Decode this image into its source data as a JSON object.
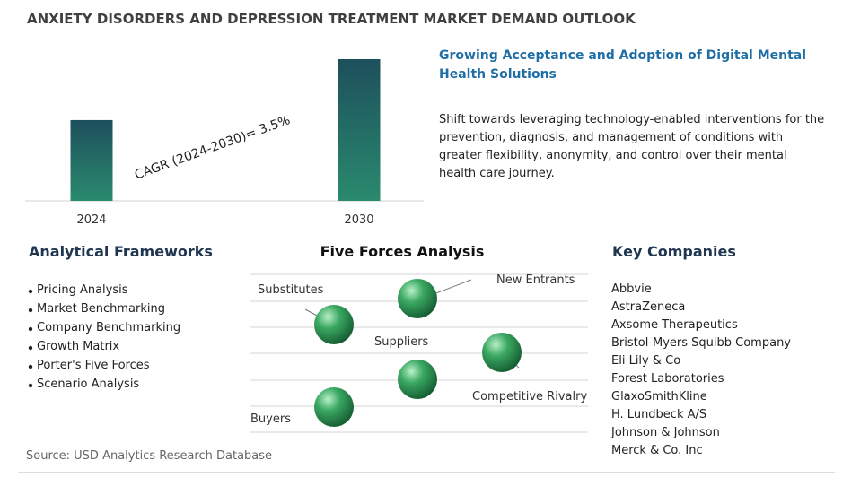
{
  "title": "ANXIETY DISORDERS AND DEPRESSION TREATMENT MARKET DEMAND OUTLOOK",
  "chart_data": {
    "type": "bar",
    "categories": [
      "2024",
      "2030"
    ],
    "values": [
      57,
      100
    ],
    "ylim": [
      0,
      100
    ],
    "annotation": "CAGR (2024-2030)=  3.5%"
  },
  "highlight": {
    "heading": "Growing Acceptance and Adoption of Digital Mental Health Solutions",
    "text": "Shift towards leveraging technology-enabled interventions for the prevention, diagnosis, and management of conditions with greater flexibility, anonymity, and control over their mental health care journey."
  },
  "frameworks": {
    "title": "Analytical Frameworks",
    "items": [
      "Pricing Analysis",
      "Market Benchmarking",
      "Company Benchmarking",
      "Growth Matrix",
      "Porter's Five Forces",
      "Scenario Analysis"
    ]
  },
  "five_forces": {
    "title": "Five Forces Analysis",
    "forces": [
      "Substitutes",
      "New Entrants",
      "Suppliers",
      "Competitive Rivalry",
      "Buyers"
    ]
  },
  "companies": {
    "title": "Key Companies",
    "items": [
      "Abbvie",
      "AstraZeneca",
      "Axsome Therapeutics",
      "Bristol-Myers Squibb Company",
      "Eli Lily & Co",
      "Forest Laboratories",
      "GlaxoSmithKline",
      "H. Lundbeck A/S",
      "Johnson & Johnson",
      "Merck & Co. Inc"
    ]
  },
  "source": "Source: USD Analytics Research Database"
}
